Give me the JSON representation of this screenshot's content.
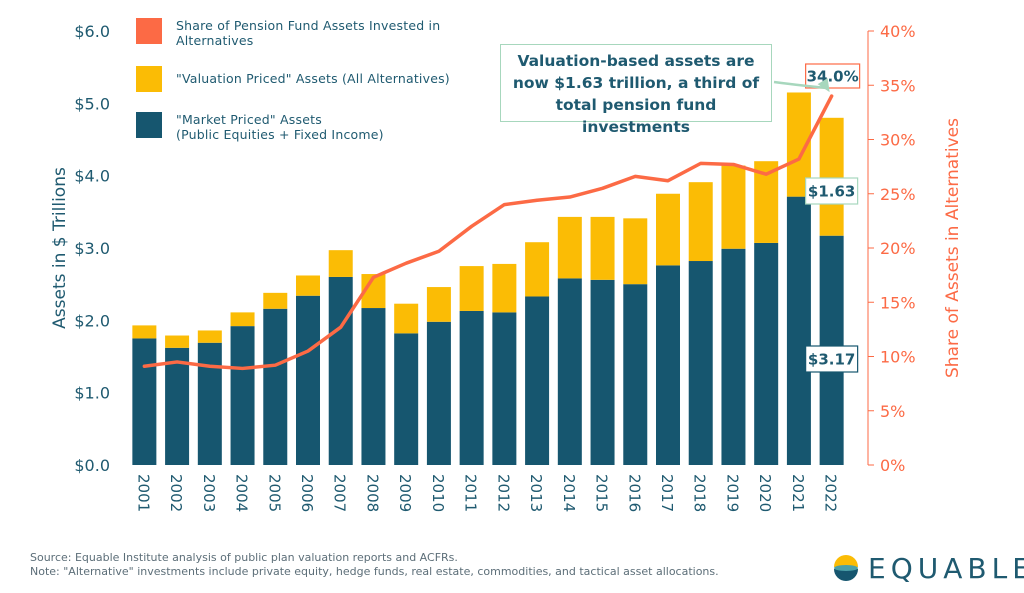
{
  "chart_data": {
    "type": "bar",
    "categories": [
      "2001",
      "2002",
      "2003",
      "2004",
      "2005",
      "2006",
      "2007",
      "2008",
      "2009",
      "2010",
      "2011",
      "2012",
      "2013",
      "2014",
      "2015",
      "2016",
      "2017",
      "2018",
      "2019",
      "2020",
      "2021",
      "2022"
    ],
    "series": [
      {
        "name": "\"Market Priced\" Assets\n(Public Equities + Fixed Income)",
        "type": "bar",
        "axis": "left",
        "values": [
          1.75,
          1.62,
          1.69,
          1.92,
          2.16,
          2.34,
          2.6,
          2.17,
          1.82,
          1.98,
          2.13,
          2.11,
          2.33,
          2.58,
          2.56,
          2.5,
          2.76,
          2.82,
          2.99,
          3.07,
          3.71,
          3.17
        ]
      },
      {
        "name": "\"Valuation Priced\" Assets (All Alternatives)",
        "type": "bar-stacked",
        "axis": "left",
        "values": [
          0.18,
          0.17,
          0.17,
          0.19,
          0.22,
          0.28,
          0.37,
          0.47,
          0.41,
          0.48,
          0.62,
          0.67,
          0.75,
          0.85,
          0.87,
          0.91,
          0.99,
          1.09,
          1.15,
          1.13,
          1.44,
          1.63
        ]
      },
      {
        "name": "Share of Pension Fund Assets Invested in\nAlternatives",
        "type": "line",
        "axis": "right",
        "values": [
          9.1,
          9.5,
          9.1,
          8.9,
          9.2,
          10.5,
          12.7,
          17.3,
          18.6,
          19.7,
          22.0,
          24.0,
          24.4,
          24.7,
          25.5,
          26.6,
          26.2,
          27.8,
          27.7,
          26.8,
          28.2,
          34.0
        ]
      }
    ],
    "ylabel": "Assets in $ Trillions",
    "y2label": "Share of Assets in Alternatives",
    "ylim": [
      0,
      6.0
    ],
    "y2lim": [
      0,
      40
    ],
    "yticks": [
      "$0.0",
      "$1.0",
      "$2.0",
      "$3.0",
      "$4.0",
      "$5.0",
      "$6.0"
    ],
    "y2ticks": [
      "0%",
      "5%",
      "10%",
      "15%",
      "20%",
      "25%",
      "30%",
      "35%",
      "40%"
    ],
    "annotations": {
      "last_valuation_label": "$1.63",
      "last_market_label": "$3.17",
      "last_share_label": "34.0%",
      "callout": "Valuation-based assets are\nnow $1.63 trillion, a third of\ntotal pension fund investments"
    },
    "colors": {
      "market": "#16566f",
      "valuation": "#fbbc05",
      "share": "#fc6a45",
      "axis_left": "#1f5a70",
      "axis_right": "#fc6a45",
      "label_border_green": "#a7d7bd",
      "label_border_blue": "#16566f"
    },
    "legend_position": "top-left",
    "grid": false
  },
  "footer": {
    "source": "Source: Equable Institute analysis of public plan valuation reports and ACFRs.",
    "note": "Note: \"Alternative\" investments include private equity, hedge funds, real estate, commodities, and tactical asset allocations."
  },
  "logo": {
    "text": "EQUABLE"
  }
}
